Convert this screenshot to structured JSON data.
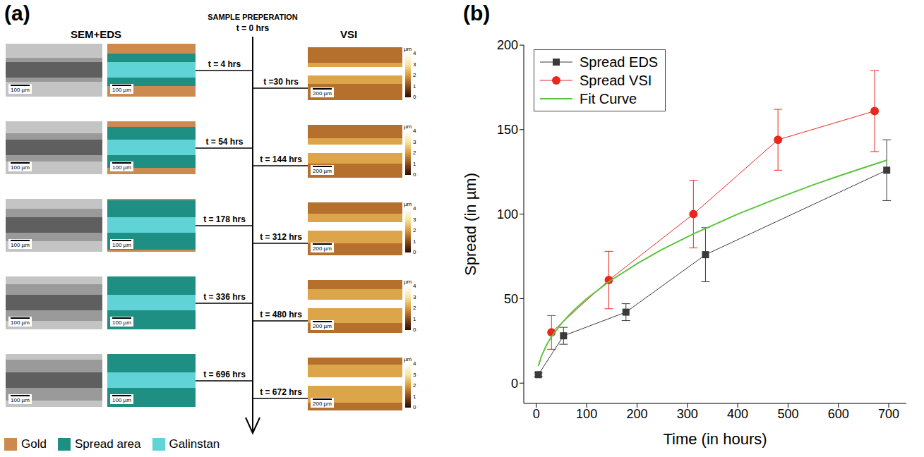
{
  "panel_a": {
    "label": "(a)",
    "left_heading": "SEM+EDS",
    "top_label": "SAMPLE PREPERATION",
    "start_time": "t = 0 hrs",
    "right_heading": "VSI",
    "left_times": [
      "t = 4 hrs",
      "t = 54 hrs",
      "t = 178 hrs",
      "t = 336 hrs",
      "t = 696 hrs"
    ],
    "right_times": [
      "t =30 hrs",
      "t = 144 hrs",
      "t = 312 hrs",
      "t = 480 hrs",
      "t = 672 hrs"
    ],
    "sem_scale": "100 µm",
    "eds_scale": "100 µm",
    "vsi_scale": "200 µm",
    "colorbar": {
      "title": "µm",
      "range": [
        0,
        4
      ],
      "ticks": [
        0,
        1,
        2,
        3,
        4
      ]
    },
    "legend": [
      {
        "name": "Gold",
        "color": "#cc8a4e"
      },
      {
        "name": "Spread area",
        "color": "#1f8f84"
      },
      {
        "name": "Galinstan",
        "color": "#5fd3d6"
      }
    ]
  },
  "chart_data": {
    "type": "line",
    "label": "(b)",
    "x_label": "Time (in hours)",
    "y_label": "Spread (in µm)",
    "xlim": [
      -25,
      735
    ],
    "ylim": [
      -12,
      200
    ],
    "xticks": [
      0,
      100,
      200,
      300,
      400,
      500,
      600,
      700
    ],
    "yticks": [
      0,
      50,
      100,
      150,
      200
    ],
    "legend": "upper left",
    "series": [
      {
        "name": "Spread EDS",
        "color": "#3a3a3a",
        "marker": "square",
        "line_style": "solid",
        "x": [
          4,
          54,
          178,
          336,
          696
        ],
        "values": [
          5,
          28,
          42,
          76,
          126
        ],
        "error": [
          1,
          5,
          5,
          16,
          18
        ]
      },
      {
        "name": "Spread VSI",
        "color": "#e8281e",
        "marker": "circle",
        "line_style": "solid",
        "x": [
          30,
          144,
          312,
          480,
          672
        ],
        "values": [
          30,
          61,
          100,
          144,
          161
        ],
        "error": [
          10,
          17,
          20,
          18,
          24
        ]
      },
      {
        "name": "Fit Curve",
        "color": "#5cc43c",
        "marker": "none",
        "line_style": "solid",
        "x": [
          4,
          10,
          20,
          30,
          50,
          75,
          100,
          144,
          200,
          250,
          312,
          400,
          480,
          550,
          600,
          672,
          696
        ],
        "values": [
          10,
          15.8,
          22.4,
          27.4,
          35.4,
          43.3,
          50,
          60,
          70.7,
          79.1,
          88.3,
          100,
          109.5,
          117.3,
          122.5,
          129.6,
          131.9
        ]
      }
    ]
  }
}
